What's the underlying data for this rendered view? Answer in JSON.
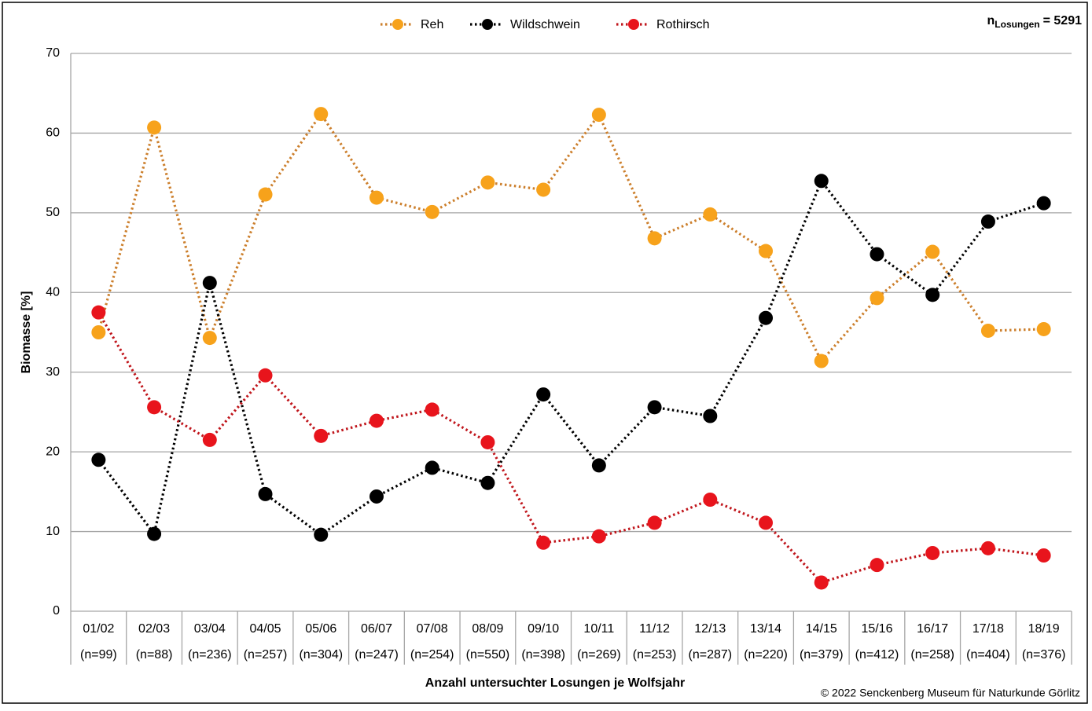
{
  "chart_data": {
    "type": "line",
    "y_label": "Biomasse [%]",
    "x_label": "Anzahl untersuchter Losungen je Wolfsjahr",
    "annotation": {
      "symbol": "n",
      "subscript": "Losungen",
      "text": "= 5291"
    },
    "credit": "© 2022 Senckenberg Museum für Naturkunde Görlitz",
    "categories": [
      "01/02",
      "02/03",
      "03/04",
      "04/05",
      "05/06",
      "06/07",
      "07/08",
      "08/09",
      "09/10",
      "10/11",
      "11/12",
      "12/13",
      "13/14",
      "14/15",
      "15/16",
      "16/17",
      "17/18",
      "18/19"
    ],
    "sample_sizes": [
      "(n=99)",
      "(n=88)",
      "(n=236)",
      "(n=257)",
      "(n=304)",
      "(n=247)",
      "(n=254)",
      "(n=550)",
      "(n=398)",
      "(n=269)",
      "(n=253)",
      "(n=287)",
      "(n=220)",
      "(n=379)",
      "(n=412)",
      "(n=258)",
      "(n=404)",
      "(n=376)"
    ],
    "series": [
      {
        "name": "Reh",
        "color": "#f7a21b",
        "line_color": "#cc7f2c",
        "values": [
          35.0,
          60.7,
          34.3,
          52.3,
          62.4,
          51.9,
          50.1,
          53.8,
          52.9,
          62.3,
          46.8,
          49.8,
          45.2,
          31.4,
          39.3,
          45.1,
          35.2,
          35.4
        ]
      },
      {
        "name": "Wildschwein",
        "color": "#000000",
        "line_color": "#000000",
        "values": [
          19.0,
          9.7,
          41.2,
          14.7,
          9.6,
          14.4,
          18.0,
          16.1,
          27.2,
          18.3,
          25.6,
          24.5,
          36.8,
          54.0,
          44.8,
          39.7,
          48.9,
          51.2
        ]
      },
      {
        "name": "Rothirsch",
        "color": "#e8141c",
        "line_color": "#c0161c",
        "values": [
          37.5,
          25.6,
          21.5,
          29.6,
          22.0,
          23.9,
          25.3,
          21.2,
          8.6,
          9.4,
          11.1,
          14.0,
          11.1,
          3.6,
          5.8,
          7.3,
          7.9,
          7.0
        ]
      }
    ],
    "ylim": [
      0,
      70
    ],
    "yticks": [
      0,
      10,
      20,
      30,
      40,
      50,
      60,
      70
    ],
    "grid": true,
    "legend": "top"
  }
}
